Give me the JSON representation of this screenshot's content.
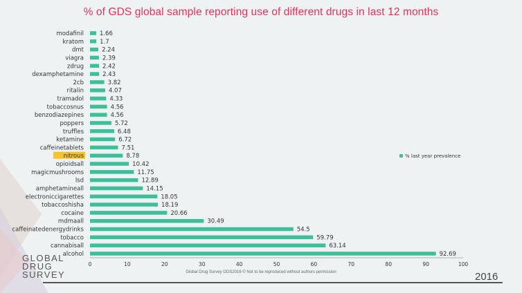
{
  "title": "% of GDS global sample reporting use of  different drugs in last 12 months",
  "footer_text": "Global Drug Survey GDS2016 © Not to be reproduced without authors permission",
  "logo_lines": [
    "GLOBAL",
    "DRUG",
    "SURVEY"
  ],
  "year": "2016",
  "colors": {
    "bar": "#3dbf99",
    "title": "#e8315a",
    "highlight": "#f6c22d"
  },
  "chart_data": {
    "type": "bar",
    "orientation": "horizontal",
    "categories": [
      "modafinil",
      "kratom",
      "dmt",
      "viagra",
      "zdrug",
      "dexamphetamine",
      "2cb",
      "ritalin",
      "tramadol",
      "tobaccosnus",
      "benzodiazepines",
      "poppers",
      "truffles",
      "ketamine",
      "caffeinetablets",
      "nitrous",
      "opioidsall",
      "magicmushrooms",
      "lsd",
      "amphetamineall",
      "electroniccigarettes",
      "tobaccoshisha",
      "cocaine",
      "mdmaall",
      "caffeinatedenergydrinks",
      "tobacco",
      "cannabisall",
      "alcohol"
    ],
    "series": [
      {
        "name": "% last year prevalence",
        "values": [
          1.66,
          1.7,
          2.24,
          2.39,
          2.42,
          2.43,
          3.82,
          4.07,
          4.33,
          4.56,
          4.56,
          5.72,
          6.48,
          6.72,
          7.51,
          8.78,
          10.42,
          11.75,
          12.89,
          14.15,
          18.05,
          18.19,
          20.66,
          30.49,
          54.5,
          59.79,
          63.14,
          92.69
        ],
        "value_labels": [
          "1.66",
          "1.7",
          "2.24",
          "2.39",
          "2.42",
          "2.43",
          "3.82",
          "4.07",
          "4.33",
          "4.56",
          "4.56",
          "5.72",
          "6.48",
          "6.72",
          "7.51",
          "8.78",
          "10.42",
          "11.75",
          "12.89",
          "14.15",
          "18.05",
          "18.19",
          "20.66",
          "30.49",
          "54.5",
          "59.79",
          "63.14",
          "92.69"
        ]
      }
    ],
    "highlighted_category": "nitrous",
    "xlim": [
      0,
      100
    ],
    "xticks": [
      "0",
      "10",
      "20",
      "30",
      "40",
      "50",
      "60",
      "70",
      "80",
      "90",
      "100"
    ],
    "grid": false,
    "legend": {
      "position": "right",
      "entries": [
        "% last year prevalence"
      ]
    }
  }
}
